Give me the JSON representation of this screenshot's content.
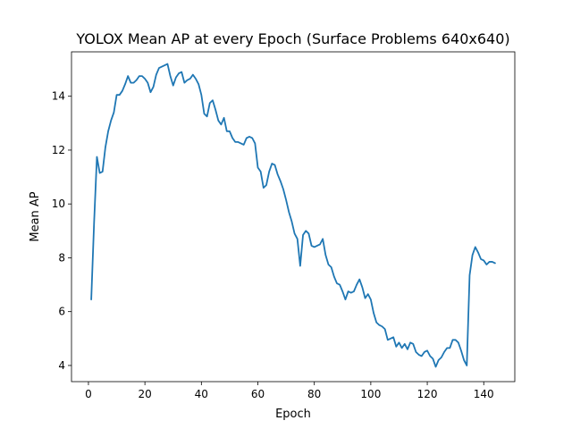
{
  "chart_data": {
    "type": "line",
    "title": "YOLOX Mean AP at every Epoch (Surface Problems 640x640)",
    "xlabel": "Epoch",
    "ylabel": "Mean AP",
    "xlim": [
      -6,
      151
    ],
    "ylim": [
      3.4,
      15.65
    ],
    "xticks": [
      0,
      20,
      40,
      60,
      80,
      100,
      120,
      140
    ],
    "yticks": [
      4,
      6,
      8,
      10,
      12,
      14
    ],
    "grid": false,
    "line_color": "#1f77b4",
    "series": [
      {
        "x": [
          1,
          2,
          3,
          4,
          5,
          6,
          7,
          8,
          9,
          10,
          11,
          12,
          13,
          14,
          15,
          16,
          17,
          18,
          19,
          20,
          21,
          22,
          23,
          24,
          25,
          26,
          27,
          28,
          29,
          30,
          31,
          32,
          33,
          34,
          35,
          36,
          37,
          38,
          39,
          40,
          41,
          42,
          43,
          44,
          45,
          46,
          47,
          48,
          49,
          50,
          51,
          52,
          53,
          54,
          55,
          56,
          57,
          58,
          59,
          60,
          61,
          62,
          63,
          64,
          65,
          66,
          67,
          68,
          69,
          70,
          71,
          72,
          73,
          74,
          75,
          76,
          77,
          78,
          79,
          80,
          81,
          82,
          83,
          84,
          85,
          86,
          87,
          88,
          89,
          90,
          91,
          92,
          93,
          94,
          95,
          96,
          97,
          98,
          99,
          100,
          101,
          102,
          103,
          104,
          105,
          106,
          107,
          108,
          109,
          110,
          111,
          112,
          113,
          114,
          115,
          116,
          117,
          118,
          119,
          120,
          121,
          122,
          123,
          124,
          125,
          126,
          127,
          128,
          129,
          130,
          131,
          132,
          133,
          134,
          135,
          136,
          137,
          138,
          139,
          140,
          141,
          142,
          143,
          144
        ],
        "values": [
          6.45,
          9.3,
          11.75,
          11.15,
          11.2,
          12.1,
          12.7,
          13.1,
          13.4,
          14.05,
          14.05,
          14.2,
          14.45,
          14.75,
          14.5,
          14.5,
          14.6,
          14.75,
          14.75,
          14.65,
          14.5,
          14.15,
          14.35,
          14.8,
          15.05,
          15.1,
          15.15,
          15.2,
          14.75,
          14.4,
          14.7,
          14.85,
          14.9,
          14.5,
          14.6,
          14.65,
          14.8,
          14.65,
          14.45,
          14.05,
          13.35,
          13.25,
          13.75,
          13.85,
          13.5,
          13.1,
          12.95,
          13.2,
          12.7,
          12.7,
          12.45,
          12.3,
          12.3,
          12.25,
          12.2,
          12.45,
          12.5,
          12.45,
          12.25,
          11.35,
          11.2,
          10.6,
          10.7,
          11.2,
          11.5,
          11.45,
          11.1,
          10.85,
          10.55,
          10.15,
          9.7,
          9.35,
          8.9,
          8.7,
          7.7,
          8.85,
          9.0,
          8.9,
          8.45,
          8.4,
          8.45,
          8.5,
          8.7,
          8.1,
          7.75,
          7.65,
          7.3,
          7.05,
          7.0,
          6.75,
          6.45,
          6.75,
          6.7,
          6.75,
          7.0,
          7.2,
          6.9,
          6.5,
          6.65,
          6.45,
          5.95,
          5.6,
          5.5,
          5.45,
          5.35,
          4.95,
          5.0,
          5.05,
          4.7,
          4.85,
          4.65,
          4.8,
          4.6,
          4.85,
          4.8,
          4.5,
          4.4,
          4.35,
          4.5,
          4.55,
          4.35,
          4.25,
          3.95,
          4.2,
          4.3,
          4.5,
          4.65,
          4.65,
          4.95,
          4.95,
          4.85,
          4.55,
          4.2,
          4.0,
          7.35,
          8.1,
          8.4,
          8.2,
          7.95,
          7.9,
          7.75,
          7.85,
          7.85,
          7.8
        ]
      }
    ]
  }
}
